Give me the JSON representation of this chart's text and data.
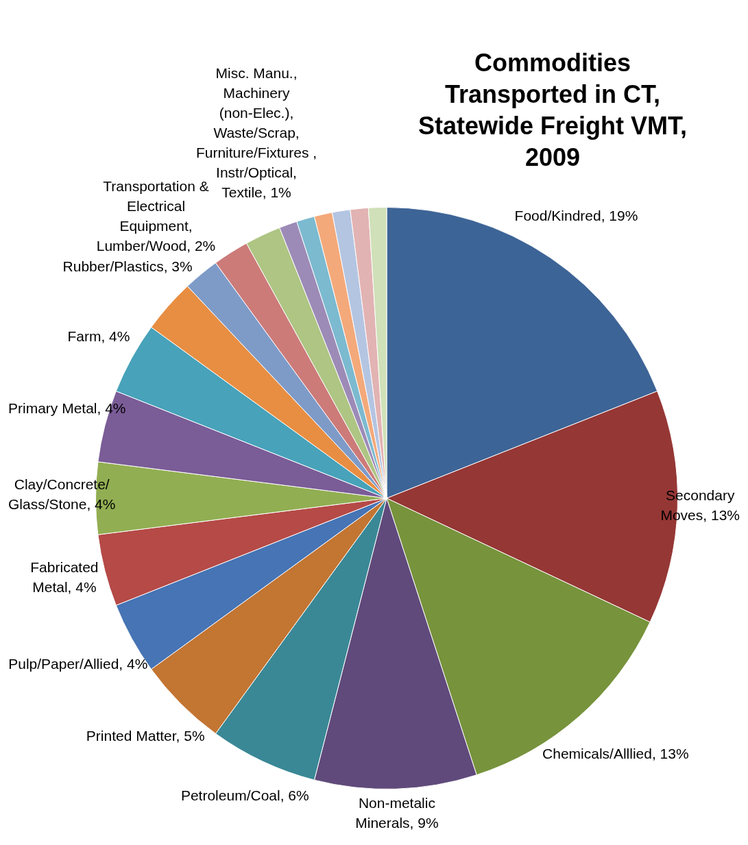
{
  "chart_data": {
    "type": "pie",
    "title": "Commodities Transported in CT, Statewide Freight VMT, 2009",
    "categories": [
      "Food/Kindred",
      "Secondary Moves",
      "Chemicals/Alllied",
      "Non-metalic Minerals",
      "Petroleum/Coal",
      "Printed Matter",
      "Pulp/Paper/Allied",
      "Fabricated Metal",
      "Clay/Concrete/ Glass/Stone",
      "Primary Metal",
      "Farm",
      "Rubber/Plastics",
      "Transportation & Electrical Equipment, Lumber/Wood",
      null,
      null,
      "Misc. Manu., Machinery (non-Elec.), Waste/Scrap, Furniture/Fixtures , Instr/Optical, Textile",
      null,
      null,
      null,
      null,
      null
    ],
    "data_labels": true,
    "values": [
      19,
      13,
      13,
      9,
      6,
      5,
      4,
      4,
      4,
      4,
      4,
      3,
      2,
      2,
      2,
      1,
      1,
      1,
      1,
      1,
      1
    ],
    "colors": [
      "#3d6496",
      "#953735",
      "#77933c",
      "#604a7b",
      "#3a8896",
      "#c37532",
      "#4674b4",
      "#b54a47",
      "#92ae52",
      "#7a5c97",
      "#47a2ba",
      "#e88e42",
      "#7e9bc8",
      "#cc7b79",
      "#aec583",
      "#9d8bb7",
      "#7cbad0",
      "#f4a97a",
      "#b4c5e2",
      "#e2b3b3",
      "#d0e0b8"
    ],
    "value_labels": [
      "19%",
      "13%",
      "13%",
      "9%",
      "6%",
      "5%",
      "4%",
      "4%",
      "4%",
      "4%",
      "4%",
      "3%",
      "2%",
      null,
      null,
      "1%",
      null,
      null,
      null,
      null,
      null
    ],
    "legend": false
  }
}
